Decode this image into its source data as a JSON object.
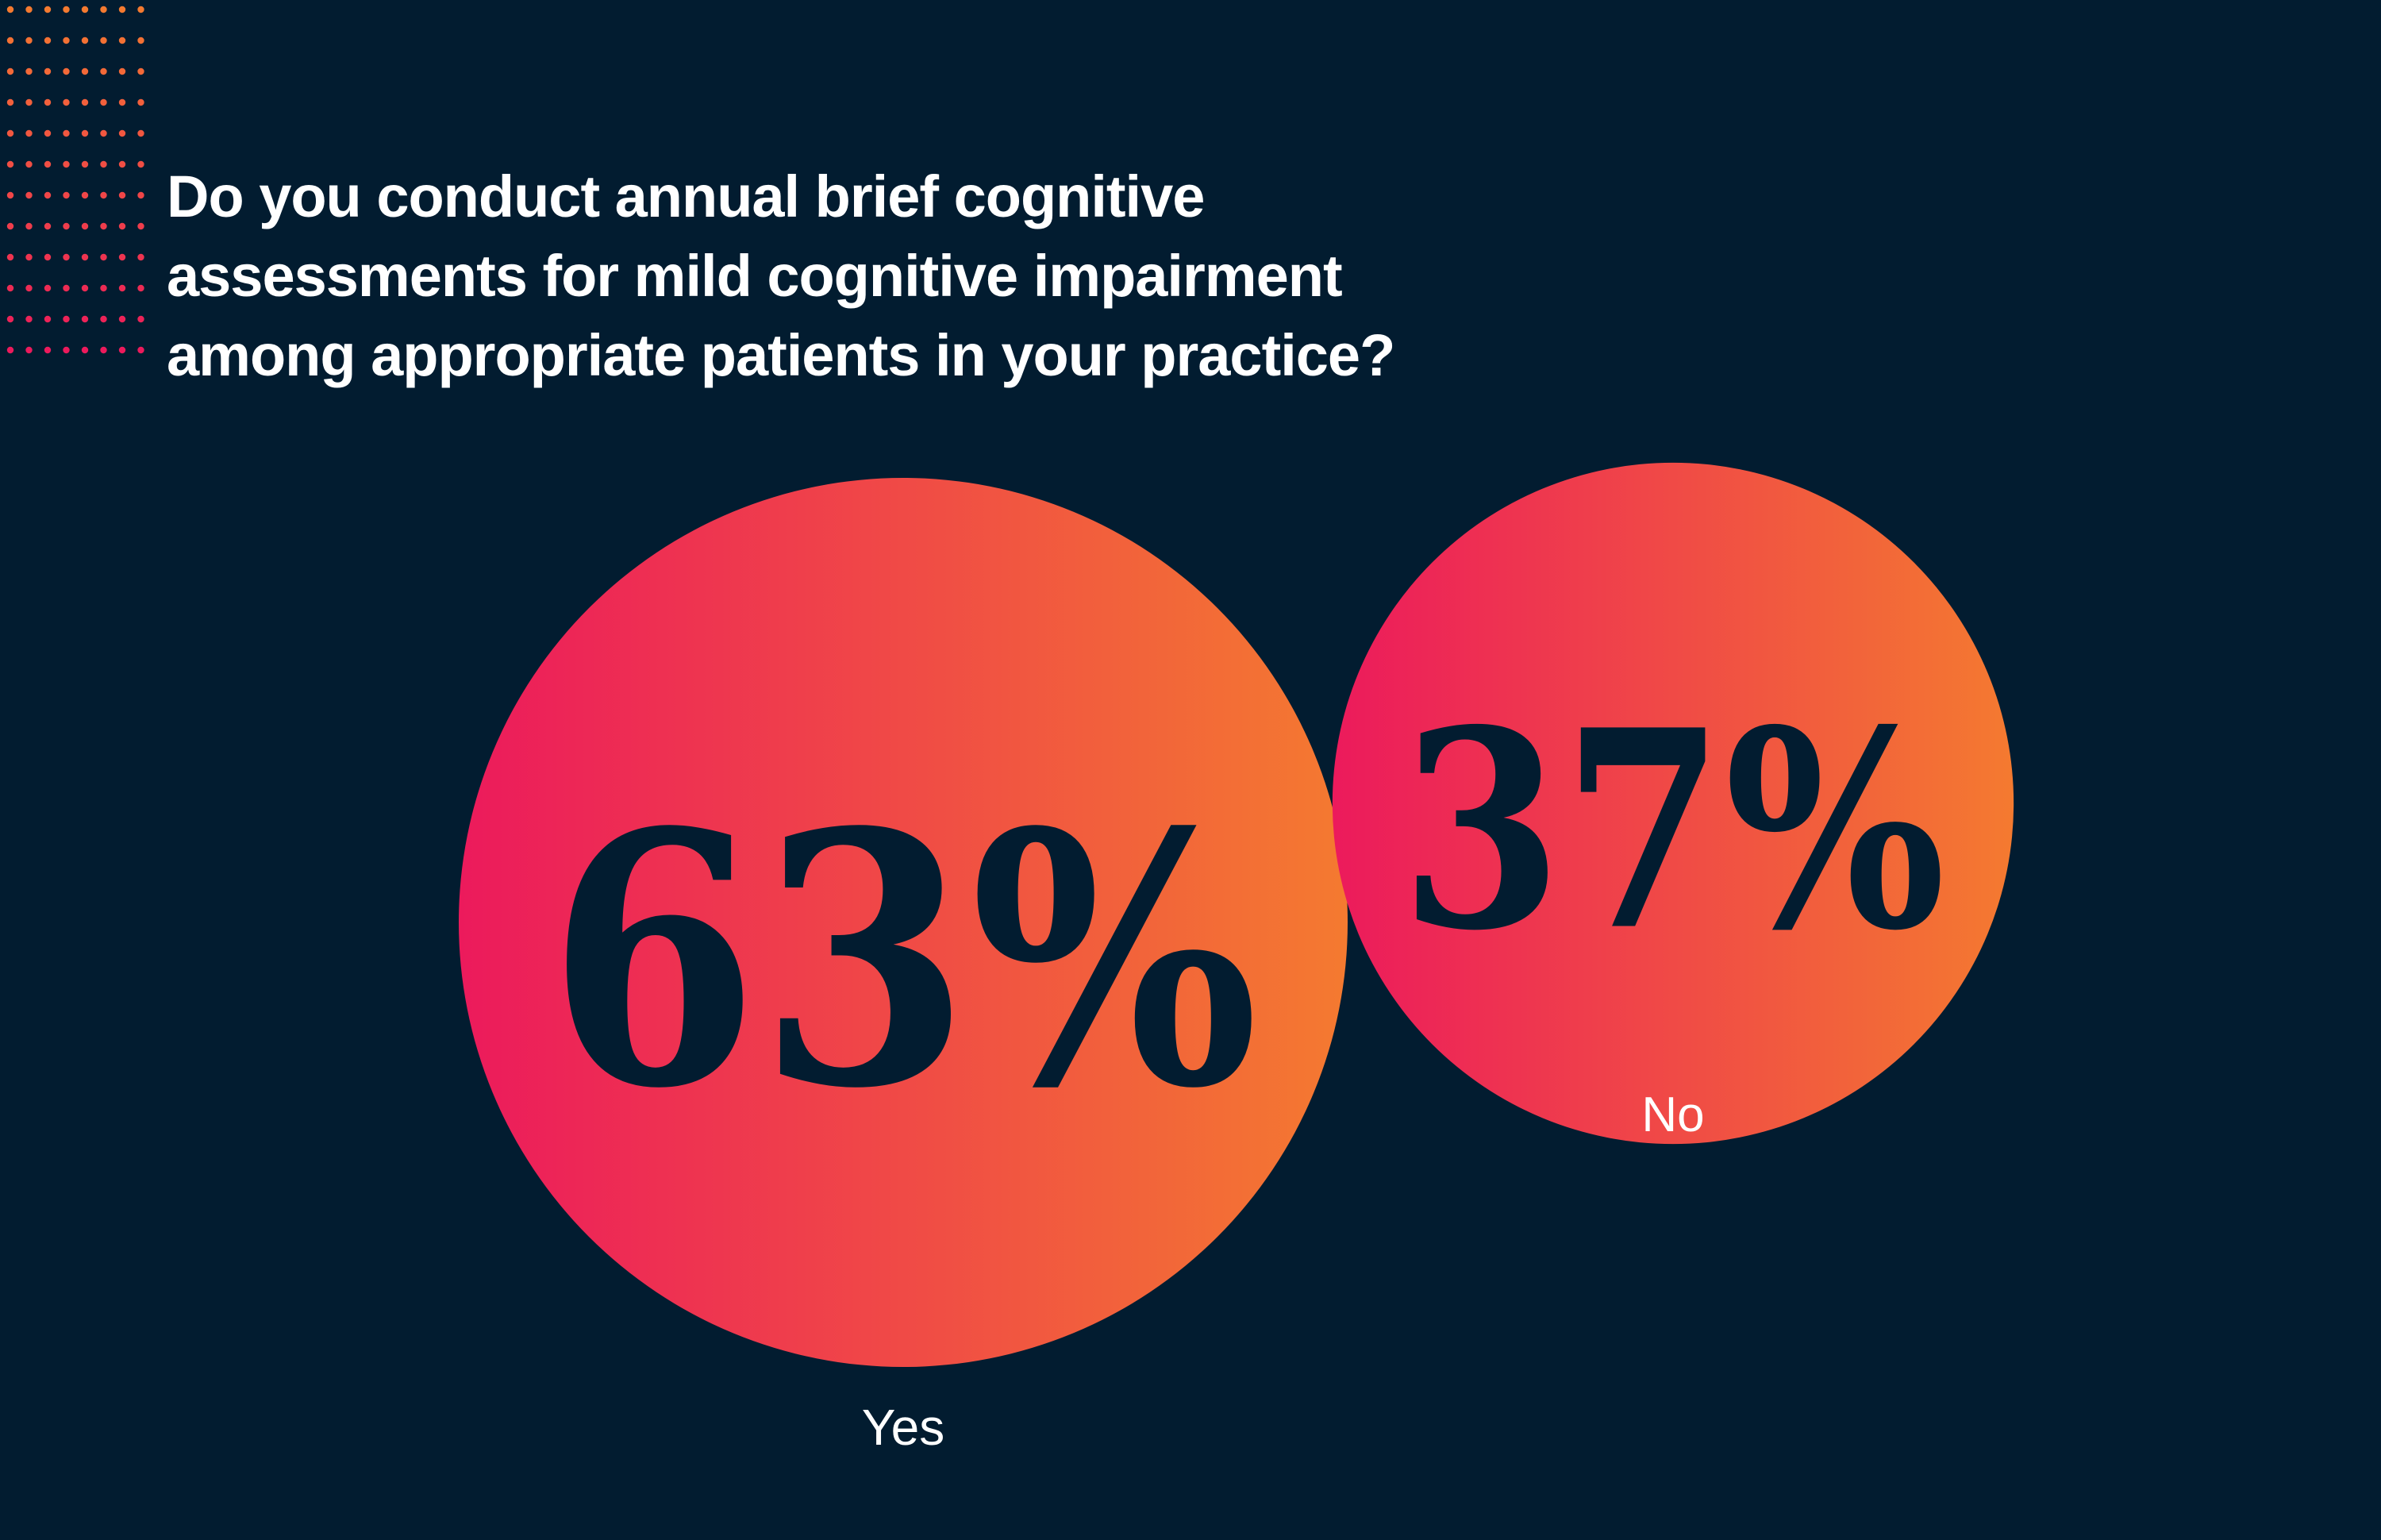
{
  "title_lines": [
    "Do you conduct annual brief cognitive",
    "assessments for mild cognitive impairment",
    "among appropriate patients in your practice?"
  ],
  "colors": {
    "background": "#021c30",
    "gradient_start": "#ec1a5c",
    "gradient_end": "#f47a30",
    "value_text": "#021c30",
    "label_text": "#ffffff"
  },
  "chart_data": {
    "type": "bubble",
    "title": "Do you conduct annual brief cognitive assessments for mild cognitive impairment among appropriate patients in your practice?",
    "categories": [
      "Yes",
      "No"
    ],
    "values": [
      63,
      37
    ],
    "value_labels": [
      "63%",
      "37%"
    ],
    "unit": "%"
  }
}
